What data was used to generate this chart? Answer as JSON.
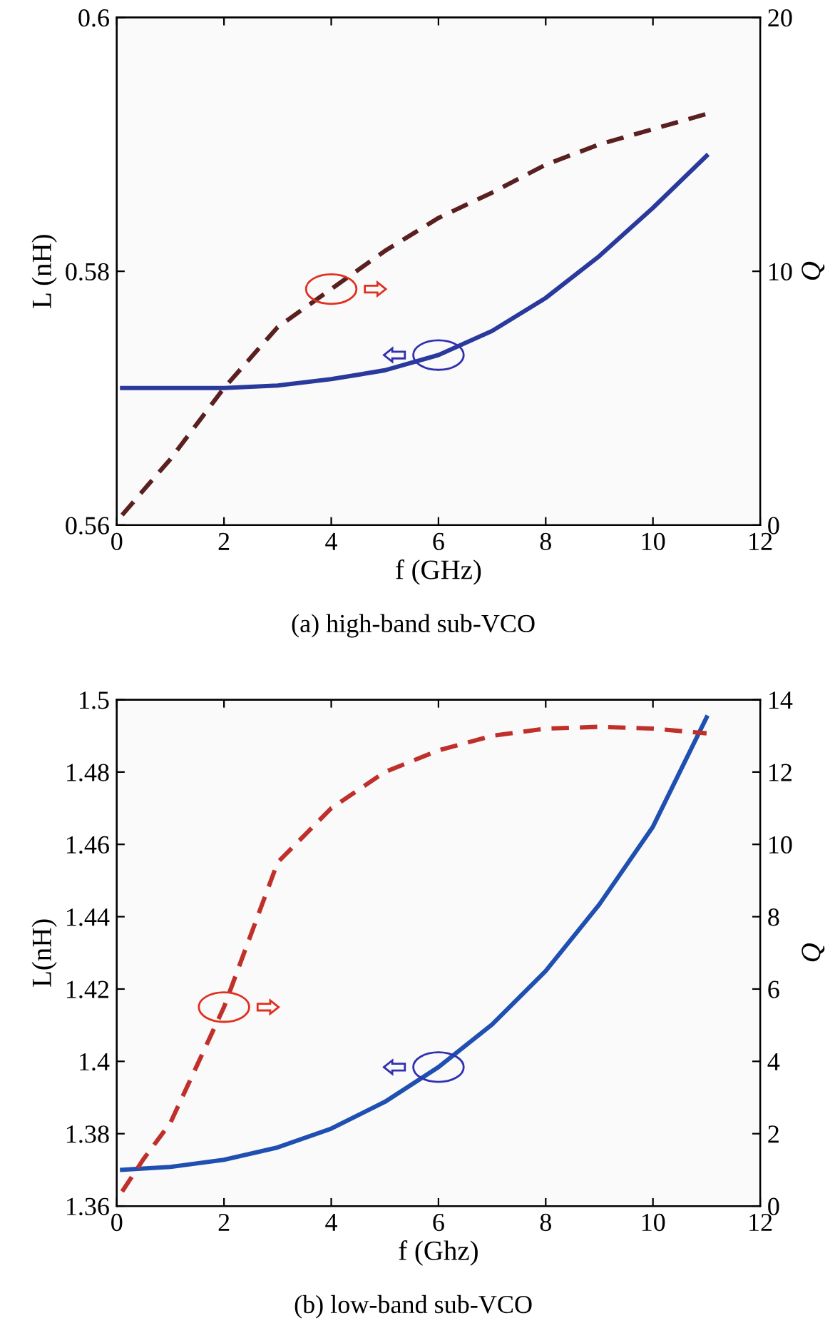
{
  "chart_data": [
    {
      "type": "line",
      "xlabel": "f (GHz)",
      "ylabel": "L (nH)",
      "y2label": "Q",
      "annotations": [
        "(a) high-band sub-VCO"
      ],
      "xlim": [
        0,
        12
      ],
      "xticks": [
        0,
        2,
        4,
        6,
        8,
        10,
        12
      ],
      "ylim": [
        0.56,
        0.6
      ],
      "yticks": [
        0.56,
        0.58,
        0.6
      ],
      "y2lim": [
        0,
        20
      ],
      "y2ticks": [
        0,
        10,
        20
      ],
      "grid": false,
      "marker": "none",
      "series": [
        {
          "color": "#2a3a9c",
          "line_style": "solid",
          "x": [
            0.1,
            1,
            2,
            3,
            4,
            5,
            6,
            7,
            8,
            9,
            10,
            11
          ],
          "values": [
            0.5708,
            0.5708,
            0.5708,
            0.571,
            0.5715,
            0.5722,
            0.5734,
            0.5753,
            0.5779,
            0.5812,
            0.585,
            0.5891
          ]
        },
        {
          "color": "#5a1f1f",
          "line_style": "dashed",
          "axis": "y2",
          "x": [
            0.1,
            1,
            2,
            3,
            4,
            5,
            6,
            7,
            8,
            9,
            10,
            11
          ],
          "values": [
            0.4,
            2.6,
            5.4,
            7.8,
            9.3,
            10.8,
            12.1,
            13.1,
            14.2,
            15.0,
            15.6,
            16.2
          ]
        }
      ]
    },
    {
      "type": "line",
      "xlabel": "f (Ghz)",
      "ylabel": "L(nH)",
      "y2label": "Q",
      "annotations": [
        "(b) low-band sub-VCO"
      ],
      "xlim": [
        0,
        12
      ],
      "xticks": [
        0,
        2,
        4,
        6,
        8,
        10,
        12
      ],
      "ylim": [
        1.36,
        1.5
      ],
      "yticks": [
        1.36,
        1.38,
        1.4,
        1.42,
        1.44,
        1.46,
        1.48,
        1.5
      ],
      "y2lim": [
        0,
        14
      ],
      "y2ticks": [
        0,
        2,
        4,
        6,
        8,
        10,
        12,
        14
      ],
      "grid": false,
      "marker": "none",
      "series": [
        {
          "color": "#1f4fb0",
          "line_style": "solid",
          "x": [
            0.1,
            1,
            2,
            3,
            4,
            5,
            6,
            7,
            8,
            9,
            10,
            11
          ],
          "values": [
            1.37,
            1.3708,
            1.3728,
            1.3762,
            1.3814,
            1.3888,
            1.3984,
            1.4102,
            1.425,
            1.4434,
            1.4649,
            1.4951
          ]
        },
        {
          "color": "#c0302a",
          "line_style": "dashed",
          "axis": "y2",
          "x": [
            0.1,
            0.5,
            1,
            1.5,
            2,
            3,
            4,
            5,
            6,
            7,
            8,
            9,
            10,
            11
          ],
          "values": [
            0.4,
            1.3,
            2.3,
            3.9,
            5.5,
            9.5,
            11.0,
            12.0,
            12.6,
            13.0,
            13.2,
            13.25,
            13.2,
            13.07
          ]
        }
      ]
    }
  ]
}
